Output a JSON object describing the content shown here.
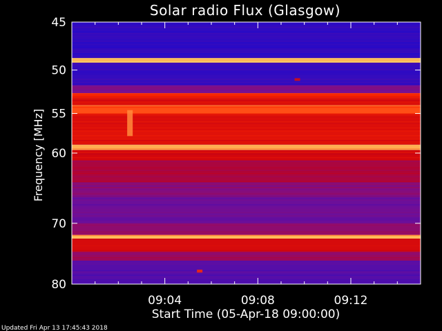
{
  "chart_data": {
    "type": "heatmap",
    "title": "Solar radio Flux (Glasgow)",
    "xlabel": "Start Time (05-Apr-18 09:00:00)",
    "ylabel": "Frequency [MHz]",
    "updated": "Updated Fri Apr 13 17:45:43 2018",
    "x_ticks": [
      {
        "minute": 4,
        "label": "09:04"
      },
      {
        "minute": 8,
        "label": "09:08"
      },
      {
        "minute": 12,
        "label": "09:12"
      }
    ],
    "xlim_minutes": [
      0,
      15
    ],
    "y_ticks": [
      {
        "mhz": 45,
        "label": "45"
      },
      {
        "mhz": 50,
        "label": "50"
      },
      {
        "mhz": 55,
        "label": "55"
      },
      {
        "mhz": 60,
        "label": "60"
      },
      {
        "mhz": 70,
        "label": "70"
      },
      {
        "mhz": 80,
        "label": "80"
      }
    ],
    "ylim_mhz": [
      45,
      80
    ],
    "y_scale": "log (reversed, low frequency at top)",
    "colormap": {
      "low": "#1a0ad0",
      "mid_low": "#7a1090",
      "mid": "#c80010",
      "high": "#ff2a00",
      "peak": "#ffe070"
    },
    "intensity_bands": [
      {
        "from_mhz": 45.0,
        "to_mhz": 48.7,
        "level": 0.08
      },
      {
        "from_mhz": 48.7,
        "to_mhz": 49.2,
        "level": 0.98
      },
      {
        "from_mhz": 49.2,
        "to_mhz": 51.7,
        "level": 0.1
      },
      {
        "from_mhz": 51.7,
        "to_mhz": 52.6,
        "level": 0.35
      },
      {
        "from_mhz": 52.6,
        "to_mhz": 53.2,
        "level": 0.8
      },
      {
        "from_mhz": 53.2,
        "to_mhz": 54.0,
        "level": 0.7
      },
      {
        "from_mhz": 54.0,
        "to_mhz": 55.0,
        "level": 0.88
      },
      {
        "from_mhz": 55.0,
        "to_mhz": 58.9,
        "level": 0.72
      },
      {
        "from_mhz": 58.9,
        "to_mhz": 59.6,
        "level": 0.96
      },
      {
        "from_mhz": 59.6,
        "to_mhz": 61.0,
        "level": 0.66
      },
      {
        "from_mhz": 61.0,
        "to_mhz": 64.0,
        "level": 0.52
      },
      {
        "from_mhz": 64.0,
        "to_mhz": 66.0,
        "level": 0.4
      },
      {
        "from_mhz": 66.0,
        "to_mhz": 70.0,
        "level": 0.3
      },
      {
        "from_mhz": 70.0,
        "to_mhz": 71.8,
        "level": 0.42
      },
      {
        "from_mhz": 71.8,
        "to_mhz": 72.4,
        "level": 0.97
      },
      {
        "from_mhz": 72.4,
        "to_mhz": 74.5,
        "level": 0.68
      },
      {
        "from_mhz": 74.5,
        "to_mhz": 76.0,
        "level": 0.45
      },
      {
        "from_mhz": 76.0,
        "to_mhz": 80.0,
        "level": 0.22
      }
    ],
    "bursts": [
      {
        "minute": 2.5,
        "from_mhz": 54.6,
        "to_mhz": 57.8,
        "level": 0.93
      },
      {
        "minute": 5.5,
        "from_mhz": 77.5,
        "to_mhz": 78.0,
        "level": 0.85
      },
      {
        "minute": 9.7,
        "from_mhz": 50.9,
        "to_mhz": 51.2,
        "level": 0.7
      }
    ]
  }
}
